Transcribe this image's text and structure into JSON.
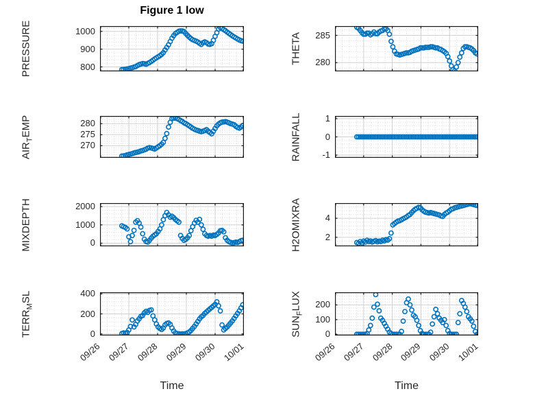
{
  "figure": {
    "title": "Figure 1 low",
    "xlabel": "Time",
    "marker_color": "#0072BD",
    "axis_color": "#1a1a1a",
    "label_color": "#262626",
    "grid_color": "#d0d0d0",
    "minor_grid_color": "#d7d7d7",
    "background": "#ffffff"
  },
  "chart_data": {
    "type": "scatter",
    "layout": "4 rows x 2 columns, shared time axis",
    "x_axis": {
      "label": "Time",
      "tick_labels": [
        "09/26",
        "09/27",
        "09/28",
        "09/29",
        "09/30",
        "10/01"
      ],
      "tick_positions_days": [
        0,
        1,
        2,
        3,
        4,
        5
      ],
      "range_days": [
        0,
        5
      ]
    },
    "x_days": [
      0.76,
      0.82,
      0.88,
      0.94,
      1,
      1.06,
      1.12,
      1.18,
      1.24,
      1.3,
      1.36,
      1.42,
      1.48,
      1.54,
      1.6,
      1.66,
      1.72,
      1.78,
      1.84,
      1.9,
      1.96,
      2.02,
      2.08,
      2.14,
      2.2,
      2.26,
      2.32,
      2.38,
      2.44,
      2.5,
      2.56,
      2.62,
      2.68,
      2.74,
      2.8,
      2.86,
      2.92,
      2.98,
      3.04,
      3.1,
      3.16,
      3.22,
      3.28,
      3.34,
      3.4,
      3.46,
      3.52,
      3.58,
      3.64,
      3.7,
      3.76,
      3.82,
      3.88,
      3.94,
      4,
      4.06,
      4.12,
      4.18,
      4.24,
      4.3,
      4.36,
      4.42,
      4.48,
      4.54,
      4.6,
      4.66,
      4.72,
      4.78,
      4.84,
      4.9,
      4.96
    ],
    "panels": [
      {
        "name": "PRESSURE",
        "ylabel_parts": [
          {
            "text": "PRESSURE",
            "sub": false
          }
        ],
        "yticks": [
          800,
          900,
          1000
        ],
        "ylim": [
          775,
          1030
        ],
        "row": 0,
        "col": 0,
        "y": [
          785,
          786,
          787,
          789,
          790,
          793,
          796,
          799,
          802,
          808,
          813,
          816,
          819,
          818,
          815,
          820,
          825,
          831,
          838,
          845,
          851,
          857,
          863,
          871,
          880,
          895,
          910,
          925,
          943,
          962,
          976,
          988,
          995,
          1001,
          1003,
          1002,
          999,
          988,
          978,
          968,
          960,
          953,
          949,
          945,
          940,
          933,
          927,
          936,
          941,
          936,
          929,
          927,
          931,
          950,
          972,
          993,
          1013,
          1022,
          1017,
          1010,
          1004,
          996,
          989,
          982,
          975,
          969,
          963,
          957,
          952,
          948,
          945
        ]
      },
      {
        "name": "THETA",
        "ylabel_parts": [
          {
            "text": "THETA",
            "sub": false
          }
        ],
        "yticks": [
          280,
          285
        ],
        "ylim": [
          278.4,
          286.7
        ],
        "row": 0,
        "col": 1,
        "y": [
          286.5,
          286.3,
          285.9,
          285.5,
          285.2,
          285.2,
          285.4,
          285.4,
          285.1,
          285.3,
          285.6,
          285.3,
          285.3,
          285.6,
          285.8,
          285.9,
          286.2,
          286.2,
          285.9,
          285.2,
          283.9,
          282.9,
          282.1,
          281.6,
          281.5,
          281.4,
          281.5,
          281.6,
          281.7,
          281.8,
          281.8,
          281.9,
          282.1,
          282.2,
          282.3,
          282.4,
          282.5,
          282.7,
          282.7,
          282.7,
          282.8,
          282.8,
          282.8,
          282.9,
          282.9,
          282.8,
          282.7,
          282.7,
          282.5,
          282.4,
          282.2,
          282,
          281.7,
          281.1,
          280.3,
          279.4,
          278.7,
          278.5,
          279.2,
          280,
          281,
          281.8,
          282.6,
          282.9,
          282.9,
          282.8,
          282.7,
          282.5,
          282.2,
          281.8,
          281.6
        ]
      },
      {
        "name": "AIR_TEMP",
        "ylabel_parts": [
          {
            "text": "AIR",
            "sub": false
          },
          {
            "text": "T",
            "sub": true
          },
          {
            "text": "EMP",
            "sub": false
          }
        ],
        "yticks": [
          270,
          275,
          280
        ],
        "ylim": [
          264.5,
          283.5
        ],
        "row": 1,
        "col": 0,
        "y": [
          265.3,
          265.4,
          265.5,
          265.8,
          266,
          266.2,
          266.4,
          266.7,
          266.9,
          267.1,
          267.3,
          267.6,
          267.8,
          268.1,
          268.4,
          268.9,
          269.1,
          269,
          268.7,
          268.5,
          269,
          269.5,
          270,
          270.7,
          271.5,
          273.3,
          275.5,
          278.5,
          280.6,
          282.3,
          282.5,
          282.5,
          282.3,
          281.9,
          281.4,
          281,
          280.4,
          280,
          279.5,
          279,
          278.5,
          277.9,
          277.5,
          277.1,
          276.9,
          276.6,
          276.4,
          276.6,
          276.9,
          277.3,
          276.6,
          276,
          275.4,
          276.6,
          277.8,
          279,
          279.8,
          280.4,
          280.7,
          280.8,
          280.9,
          280.7,
          280.4,
          280,
          279.8,
          279.5,
          278.8,
          278.3,
          278,
          278.5,
          279.2
        ]
      },
      {
        "name": "RAINFALL",
        "ylabel_parts": [
          {
            "text": "RAINFALL",
            "sub": false
          }
        ],
        "yticks": [
          -1,
          0,
          1
        ],
        "ylim": [
          -1.15,
          1.15
        ],
        "row": 1,
        "col": 1,
        "y": [
          0,
          0,
          0,
          0,
          0,
          0,
          0,
          0,
          0,
          0,
          0,
          0,
          0,
          0,
          0,
          0,
          0,
          0,
          0,
          0,
          0,
          0,
          0,
          0,
          0,
          0,
          0,
          0,
          0,
          0,
          0,
          0,
          0,
          0,
          0,
          0,
          0,
          0,
          0,
          0,
          0,
          0,
          0,
          0,
          0,
          0,
          0,
          0,
          0,
          0,
          0,
          0,
          0,
          0,
          0,
          0,
          0,
          0,
          0,
          0,
          0,
          0,
          0,
          0,
          0,
          0,
          0,
          0,
          0,
          0,
          0
        ]
      },
      {
        "name": "MIXDEPTH",
        "ylabel_parts": [
          {
            "text": "MIXDEPTH",
            "sub": false
          }
        ],
        "yticks": [
          0,
          1000,
          2000
        ],
        "ylim": [
          -170,
          2190
        ],
        "row": 2,
        "col": 0,
        "y": [
          950,
          900,
          860,
          780,
          350,
          80,
          420,
          700,
          1150,
          1230,
          1100,
          880,
          520,
          220,
          90,
          60,
          160,
          280,
          380,
          450,
          520,
          640,
          780,
          1000,
          1280,
          1500,
          1680,
          1550,
          1420,
          1470,
          1400,
          1300,
          1220,
          1150,
          420,
          260,
          160,
          210,
          300,
          420,
          680,
          900,
          1100,
          1250,
          1150,
          1300,
          1000,
          760,
          520,
          420,
          380,
          420,
          380,
          440,
          420,
          480,
          560,
          680,
          700,
          620,
          300,
          160,
          80,
          40,
          20,
          30,
          60,
          40,
          90,
          140,
          160
        ]
      },
      {
        "name": "H2OMIXRA",
        "ylabel_parts": [
          {
            "text": "H2OMIXRA",
            "sub": false
          }
        ],
        "yticks": [
          2,
          4
        ],
        "ylim": [
          1.05,
          5.6
        ],
        "row": 2,
        "col": 1,
        "y": [
          1.45,
          1.35,
          1.55,
          1.42,
          1.6,
          1.5,
          1.68,
          1.55,
          1.62,
          1.5,
          1.58,
          1.65,
          1.52,
          1.6,
          1.55,
          1.7,
          1.62,
          1.75,
          1.7,
          1.85,
          2.45,
          3.3,
          3.45,
          3.6,
          3.7,
          3.75,
          3.85,
          3.95,
          4.05,
          4.15,
          4.3,
          4.4,
          4.6,
          4.8,
          4.95,
          5.05,
          5.15,
          5.1,
          4.9,
          4.75,
          4.65,
          4.6,
          4.55,
          4.6,
          4.55,
          4.5,
          4.45,
          4.4,
          4.35,
          4.25,
          4.2,
          4.4,
          4.55,
          4.65,
          4.8,
          4.95,
          5,
          5.1,
          5.15,
          5.2,
          5.25,
          5.3,
          5.35,
          5.4,
          5.45,
          5.5,
          5.55,
          5.5,
          5.45,
          5.4,
          5.35
        ]
      },
      {
        "name": "TERR_MSL",
        "ylabel_parts": [
          {
            "text": "TERR",
            "sub": false
          },
          {
            "text": "M",
            "sub": true
          },
          {
            "text": "SL",
            "sub": false
          }
        ],
        "yticks": [
          0,
          200,
          400
        ],
        "ylim": [
          -15,
          415
        ],
        "row": 3,
        "col": 0,
        "y": [
          5,
          10,
          8,
          15,
          40,
          75,
          140,
          70,
          95,
          130,
          150,
          175,
          185,
          210,
          225,
          215,
          235,
          240,
          180,
          140,
          100,
          70,
          55,
          45,
          60,
          90,
          105,
          110,
          95,
          60,
          30,
          10,
          5,
          2,
          0,
          2,
          0,
          5,
          10,
          20,
          35,
          55,
          75,
          100,
          125,
          150,
          170,
          185,
          205,
          220,
          235,
          250,
          265,
          280,
          295,
          320,
          280,
          230,
          90,
          40,
          55,
          70,
          90,
          110,
          130,
          155,
          180,
          205,
          230,
          260,
          290
        ]
      },
      {
        "name": "SUN_FLUX",
        "ylabel_parts": [
          {
            "text": "SUN",
            "sub": false
          },
          {
            "text": "F",
            "sub": true
          },
          {
            "text": "LUX",
            "sub": false
          }
        ],
        "yticks": [
          0,
          100,
          200
        ],
        "ylim": [
          -8,
          286
        ],
        "row": 3,
        "col": 1,
        "y": [
          0,
          0,
          0,
          0,
          0,
          0,
          5,
          30,
          60,
          110,
          185,
          270,
          205,
          160,
          110,
          95,
          75,
          55,
          35,
          15,
          5,
          0,
          0,
          0,
          0,
          0,
          20,
          90,
          155,
          215,
          240,
          200,
          165,
          130,
          120,
          95,
          60,
          25,
          5,
          0,
          0,
          0,
          0,
          15,
          70,
          120,
          170,
          140,
          110,
          95,
          80,
          100,
          60,
          25,
          5,
          0,
          0,
          0,
          0,
          80,
          140,
          230,
          210,
          185,
          155,
          120,
          105,
          90,
          55,
          20,
          0
        ]
      }
    ]
  }
}
